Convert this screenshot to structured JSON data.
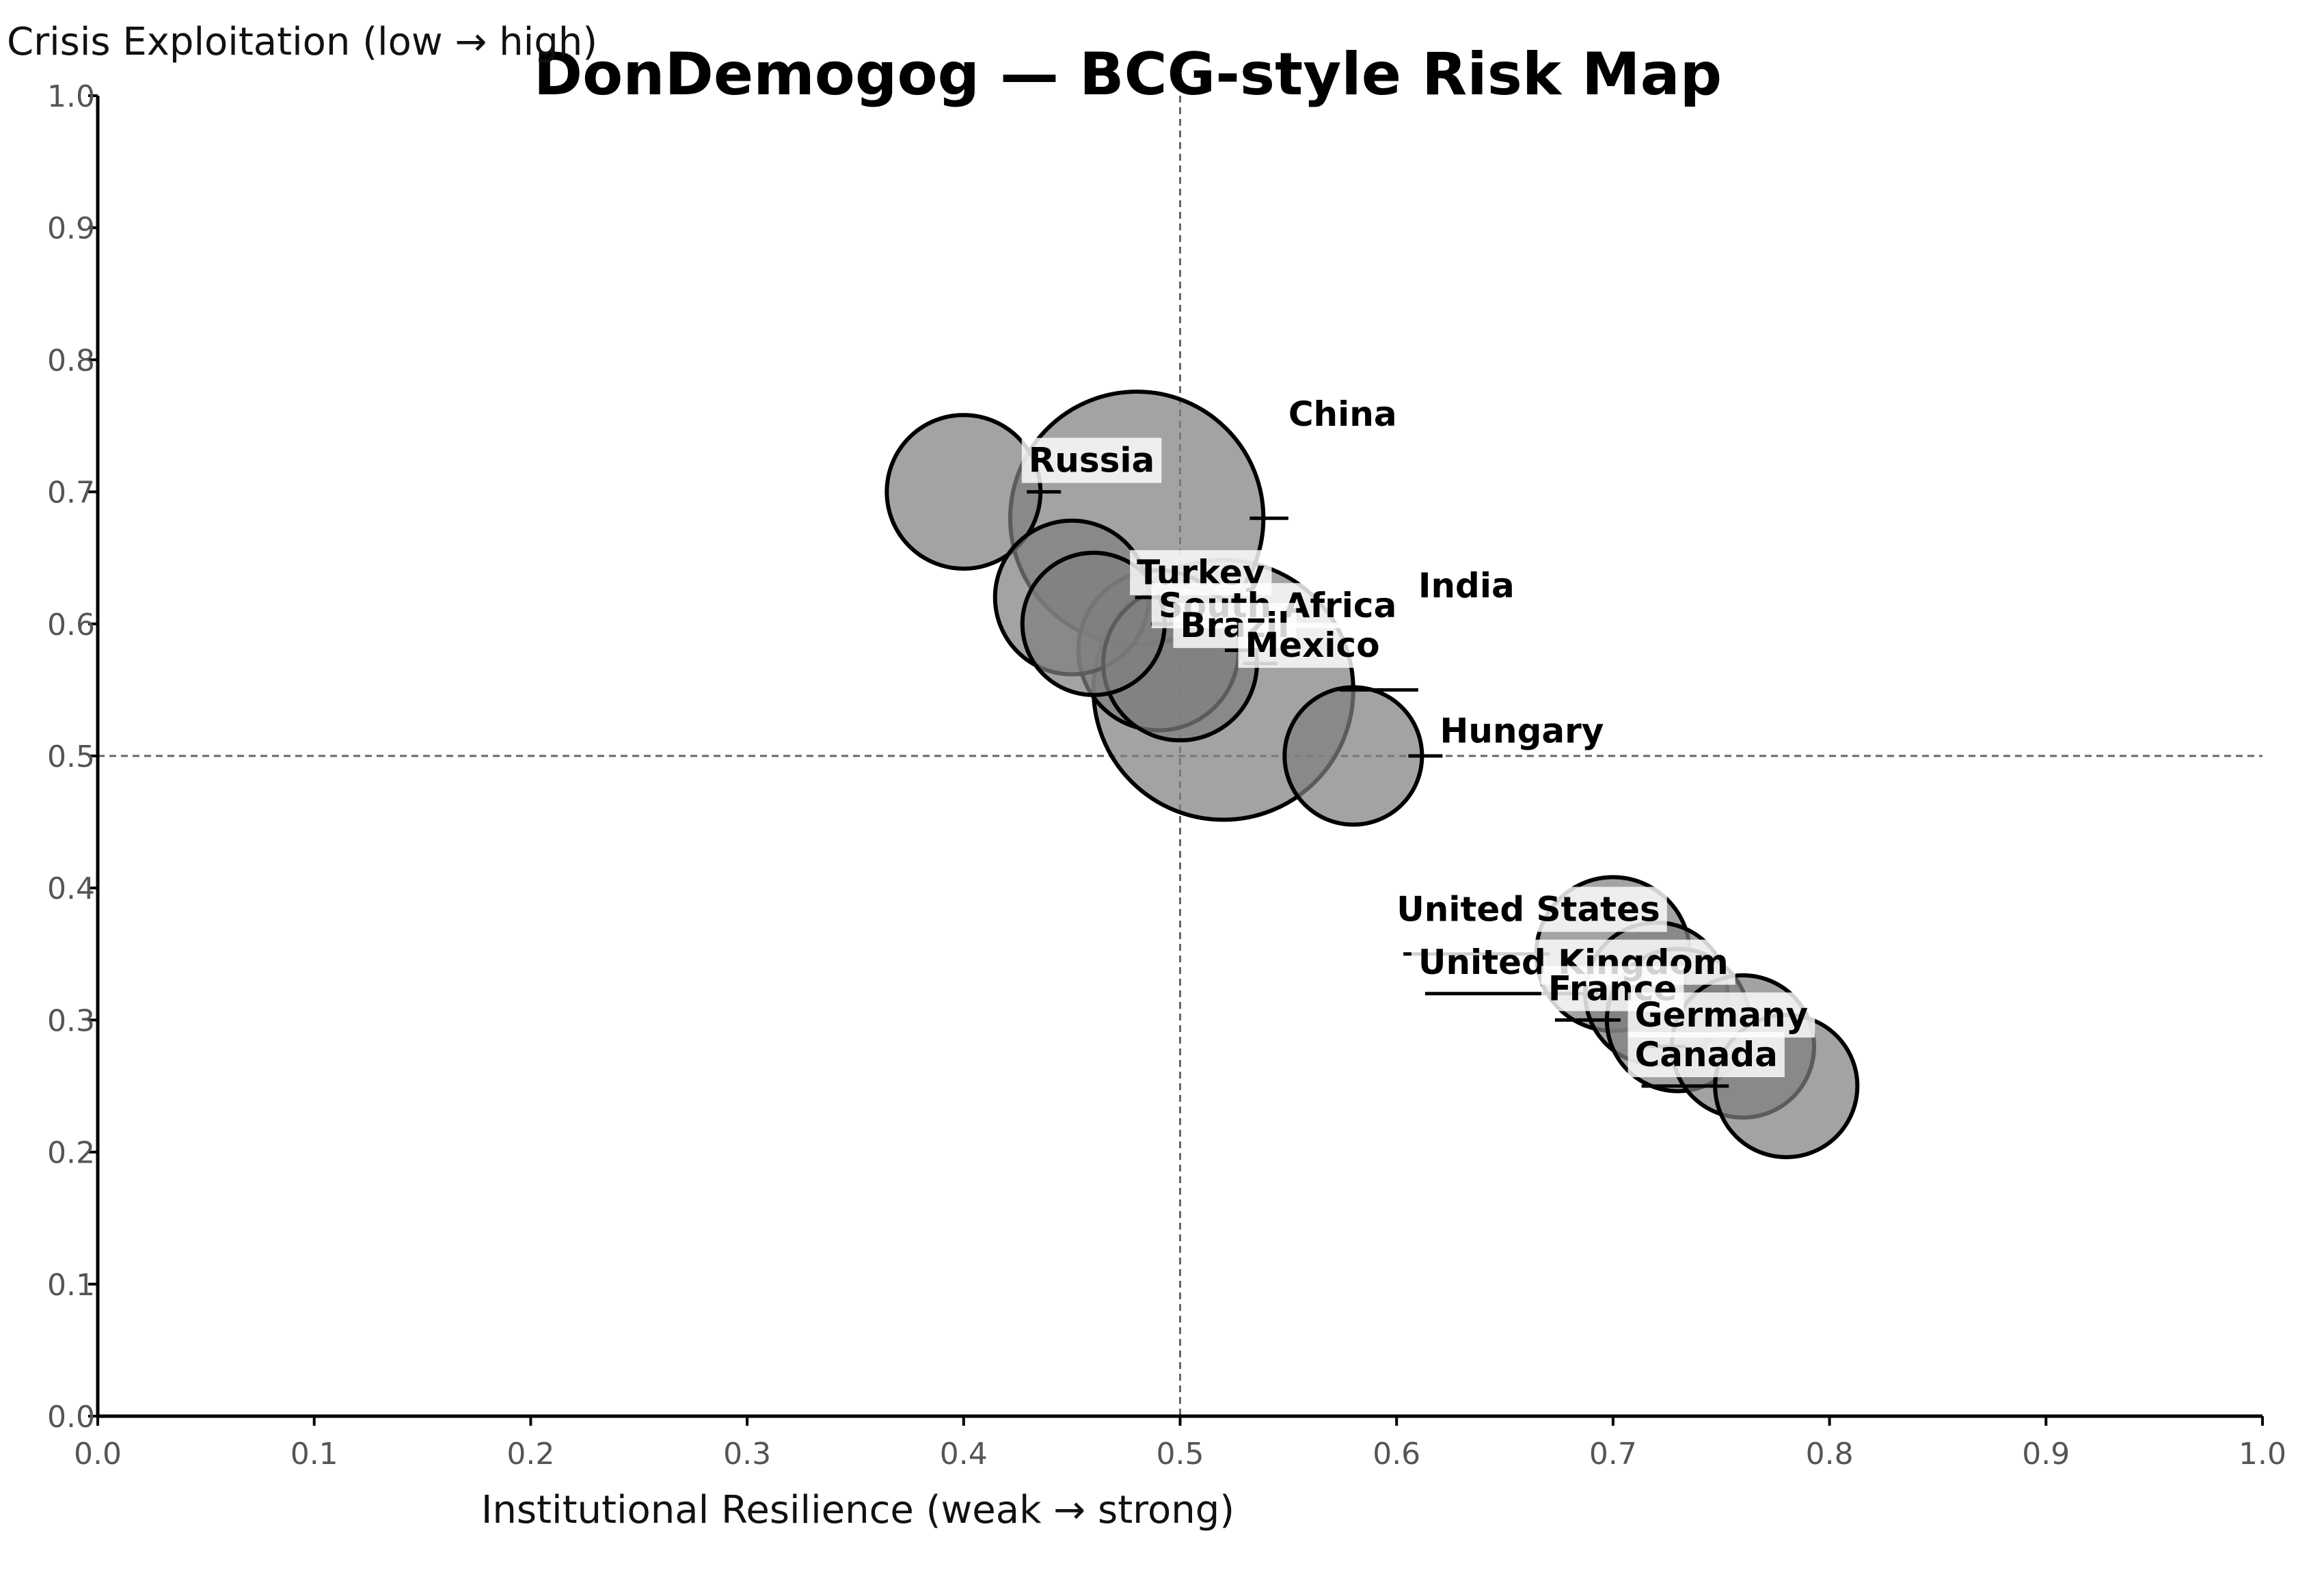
{
  "chart_data": {
    "type": "scatter",
    "title": "DonDemogog — BCG-style Risk Map",
    "xlabel": "Institutional Resilience (weak → strong)",
    "ylabel": "Crisis Exploitation (low → high)",
    "xlim": [
      0.0,
      1.0
    ],
    "ylim": [
      0.0,
      1.0
    ],
    "x_ticks": [
      "0.0",
      "0.1",
      "0.2",
      "0.3",
      "0.4",
      "0.5",
      "0.6",
      "0.7",
      "0.8",
      "0.9",
      "1.0"
    ],
    "y_ticks": [
      "0.0",
      "0.1",
      "0.2",
      "0.3",
      "0.4",
      "0.5",
      "0.6",
      "0.7",
      "0.8",
      "0.9",
      "1.0"
    ],
    "reference_lines": {
      "x": 0.5,
      "y": 0.5
    },
    "grid": false,
    "colors": {
      "bubble": "#808080",
      "bubble_dark": "#2a2a2a"
    },
    "points": [
      {
        "name": "United States",
        "x": 0.7,
        "y": 0.35,
        "size": 0.35,
        "label_x": 0.6,
        "label_y": 0.375
      },
      {
        "name": "United Kingdom",
        "x": 0.72,
        "y": 0.32,
        "size": 0.3,
        "label_x": 0.61,
        "label_y": 0.335
      },
      {
        "name": "France",
        "x": 0.73,
        "y": 0.3,
        "size": 0.3,
        "label_x": 0.67,
        "label_y": 0.315
      },
      {
        "name": "Germany",
        "x": 0.76,
        "y": 0.28,
        "size": 0.3,
        "label_x": 0.71,
        "label_y": 0.295
      },
      {
        "name": "Canada",
        "x": 0.78,
        "y": 0.25,
        "size": 0.3,
        "label_x": 0.71,
        "label_y": 0.265
      },
      {
        "name": "Hungary",
        "x": 0.58,
        "y": 0.5,
        "size": 0.28,
        "label_x": 0.62,
        "label_y": 0.51
      },
      {
        "name": "Russia",
        "x": 0.4,
        "y": 0.7,
        "size": 0.35,
        "label_x": 0.43,
        "label_y": 0.715
      },
      {
        "name": "China",
        "x": 0.48,
        "y": 0.68,
        "size": 0.95,
        "label_x": 0.55,
        "label_y": 0.75
      },
      {
        "name": "India",
        "x": 0.52,
        "y": 0.55,
        "size": 1.0,
        "label_x": 0.61,
        "label_y": 0.62
      },
      {
        "name": "Turkey",
        "x": 0.45,
        "y": 0.62,
        "size": 0.35,
        "label_x": 0.48,
        "label_y": 0.63
      },
      {
        "name": "South Africa",
        "x": 0.46,
        "y": 0.6,
        "size": 0.3,
        "label_x": 0.49,
        "label_y": 0.605
      },
      {
        "name": "Brazil",
        "x": 0.49,
        "y": 0.58,
        "size": 0.38,
        "label_x": 0.5,
        "label_y": 0.59
      },
      {
        "name": "Mexico",
        "x": 0.5,
        "y": 0.57,
        "size": 0.35,
        "label_x": 0.53,
        "label_y": 0.575
      }
    ]
  }
}
